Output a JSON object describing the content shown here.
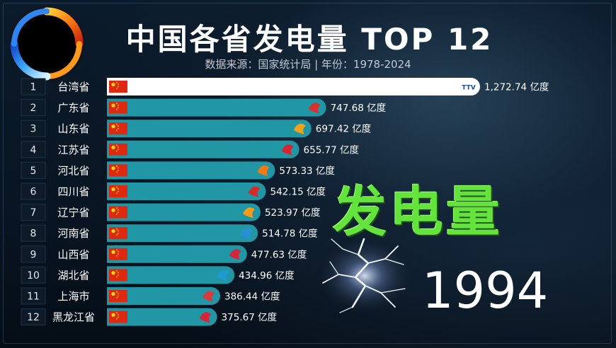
{
  "title": "中国各省发电量 TOP 12",
  "subtitle": "数据来源：国家统计局 | 年份：1978-2024",
  "big_label": "发电量",
  "year": "1994",
  "colors": {
    "bar_default": "#2197a6",
    "bar_top": "#ffffff",
    "accent_green": "#63e33b"
  },
  "flag_icon": "china-flag-icon",
  "chart_data": {
    "type": "bar",
    "orientation": "horizontal",
    "unit": "亿度",
    "ranks": [
      "1",
      "2",
      "3",
      "4",
      "5",
      "6",
      "7",
      "8",
      "9",
      "10",
      "11",
      "12"
    ],
    "categories": [
      "台湾省",
      "广东省",
      "山东省",
      "江苏省",
      "河北省",
      "四川省",
      "辽宁省",
      "河南省",
      "山西省",
      "湖北省",
      "上海市",
      "黑龙江省"
    ],
    "values": [
      1272.74,
      747.68,
      697.42,
      655.77,
      573.33,
      542.15,
      523.97,
      514.78,
      477.63,
      434.96,
      386.44,
      375.67
    ],
    "value_labels": [
      "1,272.74 亿度",
      "747.68 亿度",
      "697.42 亿度",
      "655.77 亿度",
      "573.33 亿度",
      "542.15 亿度",
      "523.97 亿度",
      "514.78 亿度",
      "477.63 亿度",
      "434.96 亿度",
      "386.44 亿度",
      "375.67 亿度"
    ],
    "bar_logos": [
      "TTV",
      "",
      "",
      "",
      "",
      "",
      "",
      "",
      "",
      "",
      "",
      ""
    ],
    "logo_colors": [
      "#1b4fa0",
      "#d8322e",
      "#f0a21b",
      "#d9232e",
      "#f07a1a",
      "#d42b2b",
      "#f59b1b",
      "#2a8fd6",
      "#d4263a",
      "#1f9bd1",
      "#d83b3b",
      "#d4263a"
    ]
  }
}
